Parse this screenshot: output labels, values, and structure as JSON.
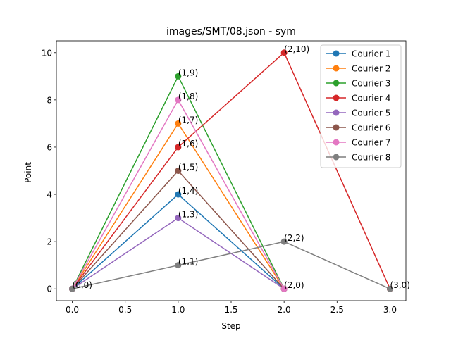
{
  "chart_data": {
    "type": "line",
    "title": "images/SMT/08.json - sym",
    "xlabel": "Step",
    "ylabel": "Point",
    "xlim": [
      -0.15,
      3.15
    ],
    "ylim": [
      -0.5,
      10.5
    ],
    "xticks": [
      0.0,
      0.5,
      1.0,
      1.5,
      2.0,
      2.5,
      3.0
    ],
    "xtick_labels": [
      "0.0",
      "0.5",
      "1.0",
      "1.5",
      "2.0",
      "2.5",
      "3.0"
    ],
    "yticks": [
      0,
      2,
      4,
      6,
      8,
      10
    ],
    "ytick_labels": [
      "0",
      "2",
      "4",
      "6",
      "8",
      "10"
    ],
    "grid": false,
    "legend_position": "top-right",
    "series": [
      {
        "name": "Courier 1",
        "color": "#1f77b4",
        "x": [
          0,
          1,
          2
        ],
        "y": [
          0,
          4,
          0
        ]
      },
      {
        "name": "Courier 2",
        "color": "#ff7f0e",
        "x": [
          0,
          1,
          2
        ],
        "y": [
          0,
          7,
          0
        ]
      },
      {
        "name": "Courier 3",
        "color": "#2ca02c",
        "x": [
          0,
          1,
          2
        ],
        "y": [
          0,
          9,
          0
        ]
      },
      {
        "name": "Courier 4",
        "color": "#d62728",
        "x": [
          0,
          1,
          2,
          3
        ],
        "y": [
          0,
          6,
          10,
          0
        ]
      },
      {
        "name": "Courier 5",
        "color": "#9467bd",
        "x": [
          0,
          1,
          2
        ],
        "y": [
          0,
          3,
          0
        ]
      },
      {
        "name": "Courier 6",
        "color": "#8c564b",
        "x": [
          0,
          1,
          2
        ],
        "y": [
          0,
          5,
          0
        ]
      },
      {
        "name": "Courier 7",
        "color": "#e377c2",
        "x": [
          0,
          1,
          2
        ],
        "y": [
          0,
          8,
          0
        ]
      },
      {
        "name": "Courier 8",
        "color": "#7f7f7f",
        "x": [
          0,
          1,
          2,
          3
        ],
        "y": [
          0,
          1,
          2,
          0
        ]
      }
    ],
    "annotations": [
      {
        "text": "(0,0)",
        "x": 0,
        "y": 0
      },
      {
        "text": "(1,4)",
        "x": 1,
        "y": 4
      },
      {
        "text": "(2,0)",
        "x": 2,
        "y": 0
      },
      {
        "text": "(1,7)",
        "x": 1,
        "y": 7
      },
      {
        "text": "(1,9)",
        "x": 1,
        "y": 9
      },
      {
        "text": "(1,6)",
        "x": 1,
        "y": 6
      },
      {
        "text": "(2,10)",
        "x": 2,
        "y": 10
      },
      {
        "text": "(3,0)",
        "x": 3,
        "y": 0
      },
      {
        "text": "(1,3)",
        "x": 1,
        "y": 3
      },
      {
        "text": "(1,5)",
        "x": 1,
        "y": 5
      },
      {
        "text": "(1,8)",
        "x": 1,
        "y": 8
      },
      {
        "text": "(1,1)",
        "x": 1,
        "y": 1
      },
      {
        "text": "(2,2)",
        "x": 2,
        "y": 2
      }
    ]
  }
}
